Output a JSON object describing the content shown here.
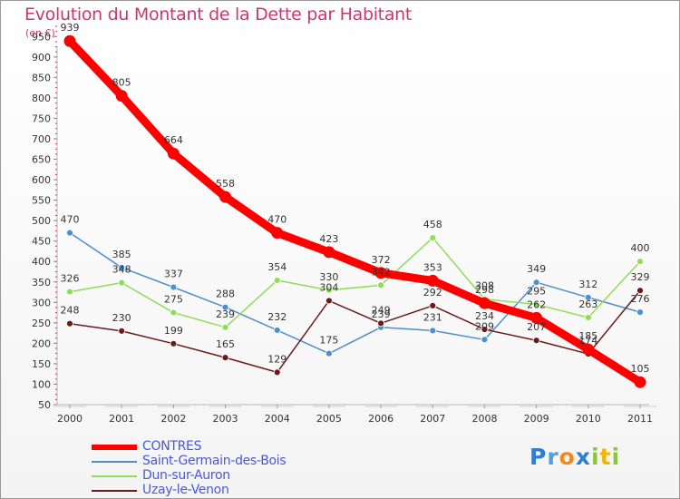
{
  "title": "Evolution du Montant de la Dette par Habitant",
  "unit": "(en €)",
  "logo": {
    "parts": [
      {
        "text": "P",
        "color": "#2e7fd3"
      },
      {
        "text": "r",
        "color": "#4e9fe3"
      },
      {
        "text": "o",
        "color": "#f08a1c"
      },
      {
        "text": "x",
        "color": "#2e7fd3"
      },
      {
        "text": "i",
        "color": "#8cc63e"
      },
      {
        "text": "t",
        "color": "#f5b400"
      },
      {
        "text": "i",
        "color": "#8cc63e"
      }
    ]
  },
  "chart_data": {
    "type": "line",
    "categories": [
      "2000",
      "2001",
      "2002",
      "2003",
      "2004",
      "2005",
      "2006",
      "2007",
      "2008",
      "2009",
      "2010",
      "2011"
    ],
    "ylim": [
      50,
      975
    ],
    "yticks": [
      50,
      100,
      150,
      200,
      250,
      300,
      350,
      400,
      450,
      500,
      550,
      600,
      650,
      700,
      750,
      800,
      850,
      900,
      950
    ],
    "grid": false,
    "legend_position": "bottom-left",
    "series": [
      {
        "name": "CONTRES",
        "color": "#ff0000",
        "values": [
          939,
          805,
          664,
          558,
          470,
          423,
          372,
          353,
          298,
          262,
          185,
          105
        ],
        "labels": [
          "939",
          "805",
          "664",
          "558",
          "470",
          "423",
          "372",
          "353",
          "298",
          "262",
          "185",
          "105"
        ]
      },
      {
        "name": "Saint-Germain-des-Bois",
        "color": "#4f8fc8",
        "values": [
          470,
          385,
          337,
          288,
          232,
          175,
          239,
          231,
          209,
          349,
          312,
          276
        ],
        "labels": [
          "470",
          "385",
          "337",
          "288",
          "232",
          "175",
          "239",
          "231",
          "209",
          "349",
          "312",
          "276"
        ]
      },
      {
        "name": "Dun-sur-Auron",
        "color": "#8fdc55",
        "values": [
          326,
          348,
          275,
          239,
          354,
          330,
          342,
          458,
          308,
          295,
          263,
          400
        ],
        "labels": [
          "326",
          "348",
          "275",
          "239",
          "354",
          "330",
          "342",
          "458",
          "308",
          "295",
          "263",
          "400"
        ]
      },
      {
        "name": "Uzay-le-Venon",
        "color": "#6b1a1a",
        "values": [
          248,
          230,
          199,
          165,
          129,
          304,
          249,
          292,
          234,
          207,
          174,
          329
        ],
        "labels": [
          "248",
          "230",
          "199",
          "165",
          "129",
          "304",
          "249",
          "292",
          "234",
          "207",
          "174",
          "329"
        ]
      }
    ]
  }
}
